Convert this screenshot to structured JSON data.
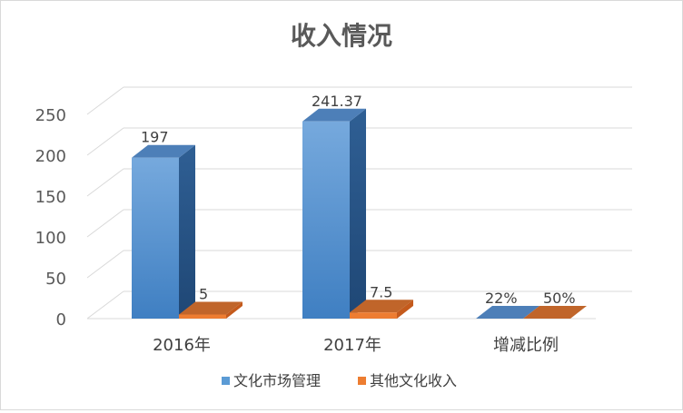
{
  "chart_data": {
    "type": "bar",
    "title": "收入情况",
    "categories": [
      "2016年",
      "2017年",
      "增减比例"
    ],
    "series": [
      {
        "name": "文化市场管理",
        "values": [
          197,
          241.37,
          22
        ],
        "labels": [
          "197",
          "241.37",
          "22%"
        ],
        "color": "#5b9bd5"
      },
      {
        "name": "其他文化收入",
        "values": [
          5,
          7.5,
          50
        ],
        "labels": [
          "5",
          "7.5",
          "50%"
        ],
        "color": "#ed7d31"
      }
    ],
    "ylim": [
      0,
      250
    ],
    "yticks": [
      0,
      50,
      100,
      150,
      200,
      250
    ],
    "grid": true,
    "legend": "bottom",
    "style": "3d-column"
  }
}
